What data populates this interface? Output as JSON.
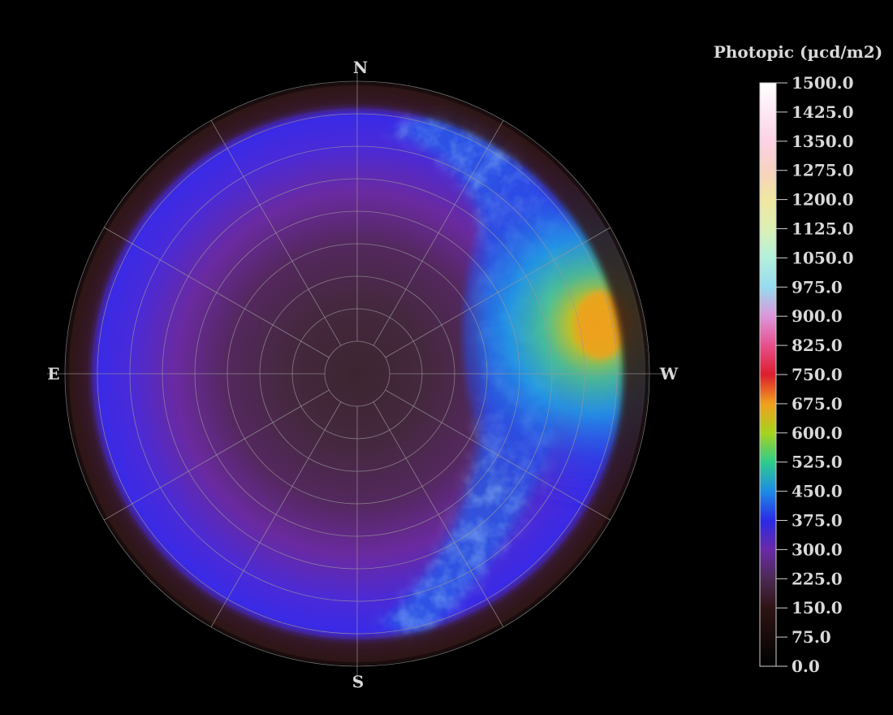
{
  "chart_data": {
    "type": "heatmap",
    "projection": "polar-sky-map",
    "compass": {
      "north": "N",
      "south": "S",
      "east": "E",
      "west": "W"
    },
    "colorbar": {
      "title": "Photopic (µcd/m2)",
      "min": 0.0,
      "max": 1500.0,
      "ticks": [
        "1500.0",
        "1425.0",
        "1350.0",
        "1275.0",
        "1200.0",
        "1125.0",
        "1050.0",
        "975.0",
        "900.0",
        "825.0",
        "750.0",
        "675.0",
        "600.0",
        "525.0",
        "450.0",
        "375.0",
        "300.0",
        "225.0",
        "150.0",
        "75.0",
        "0.0"
      ],
      "stops": [
        {
          "value": 0,
          "color": "#000000"
        },
        {
          "value": 150,
          "color": "#2e1414"
        },
        {
          "value": 225,
          "color": "#4a2a52"
        },
        {
          "value": 300,
          "color": "#6a2aa8"
        },
        {
          "value": 375,
          "color": "#2a2ae6"
        },
        {
          "value": 450,
          "color": "#1e8ce6"
        },
        {
          "value": 525,
          "color": "#2ecc8c"
        },
        {
          "value": 600,
          "color": "#a8d21e"
        },
        {
          "value": 675,
          "color": "#f0a01e"
        },
        {
          "value": 750,
          "color": "#dc1e2e"
        },
        {
          "value": 825,
          "color": "#e6508c"
        },
        {
          "value": 900,
          "color": "#dc96dc"
        },
        {
          "value": 975,
          "color": "#96dcf0"
        },
        {
          "value": 1050,
          "color": "#b4f0dc"
        },
        {
          "value": 1125,
          "color": "#dcf0b4"
        },
        {
          "value": 1200,
          "color": "#f0e6a0"
        },
        {
          "value": 1275,
          "color": "#f8d2c0"
        },
        {
          "value": 1350,
          "color": "#fcd2e6"
        },
        {
          "value": 1425,
          "color": "#fee8f4"
        },
        {
          "value": 1500,
          "color": "#ffffff"
        }
      ]
    },
    "grid": {
      "rings": 9,
      "spokes": 12,
      "color": "#9a9a9a"
    },
    "sky_regions": {
      "zenith_value": 200,
      "east_horizon_value": 375,
      "horizon_rim_value": 150,
      "west_glow": {
        "azimuth_deg": 283,
        "peak_value": 650,
        "description_color": "#f0a01e"
      },
      "milky_way_band": true
    }
  }
}
